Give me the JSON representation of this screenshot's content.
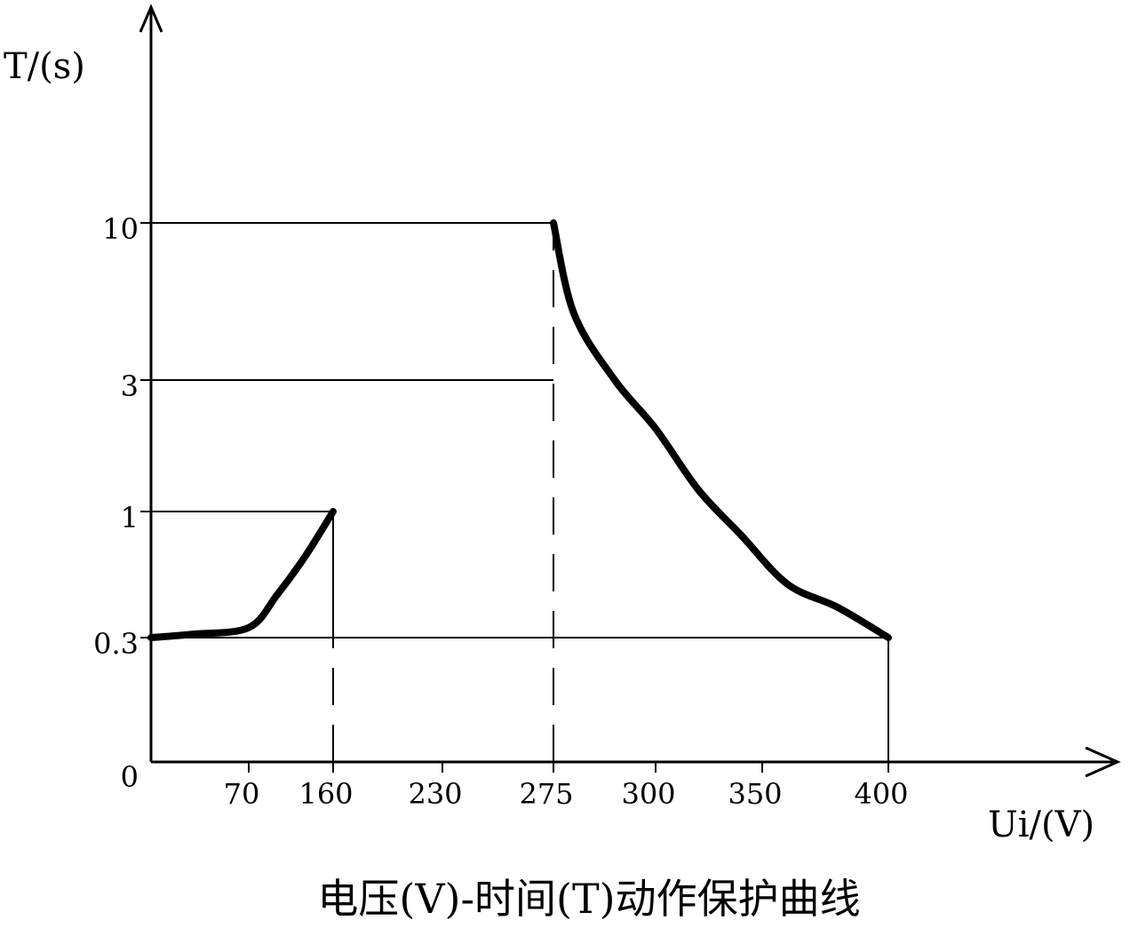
{
  "chart_data": {
    "type": "line",
    "title": "电压(V)-时间(T)动作保护曲线",
    "xlabel": "Ui/(V)",
    "ylabel": "T/(s)",
    "x_ticks": [
      "70",
      "160",
      "230",
      "275",
      "300",
      "350",
      "400"
    ],
    "y_ticks": [
      "0",
      "0.3",
      "1",
      "3",
      "10"
    ],
    "reference_lines": {
      "horizontal": [
        {
          "y": "10",
          "from": "0",
          "to": "275"
        },
        {
          "y": "3",
          "from": "0",
          "to": "275"
        },
        {
          "y": "1",
          "from": "0",
          "to": "160"
        },
        {
          "y": "0.3",
          "from": "0",
          "to": "400"
        }
      ],
      "vertical_solid": [
        {
          "x": "160",
          "from": "0.3",
          "to": "1"
        },
        {
          "x": "400",
          "from": "0",
          "to": "0.3"
        }
      ],
      "vertical_dashed": [
        {
          "x": "160",
          "from": "0",
          "to": "0.3"
        },
        {
          "x": "275",
          "from": "0",
          "to": "10"
        }
      ]
    },
    "series": [
      {
        "points": [
          [
            "0",
            "0.3"
          ],
          [
            "30",
            "0.31"
          ],
          [
            "70",
            "0.33"
          ],
          [
            "100",
            "0.45"
          ],
          [
            "130",
            "0.65"
          ],
          [
            "160",
            "1"
          ]
        ]
      },
      {
        "points": [
          [
            "275",
            "10"
          ],
          [
            "280",
            "5"
          ],
          [
            "290",
            "3"
          ],
          [
            "300",
            "2"
          ],
          [
            "320",
            "1.2"
          ],
          [
            "340",
            "0.8"
          ],
          [
            "360",
            "0.5"
          ],
          [
            "380",
            "0.4"
          ],
          [
            "400",
            "0.3"
          ]
        ]
      }
    ]
  }
}
